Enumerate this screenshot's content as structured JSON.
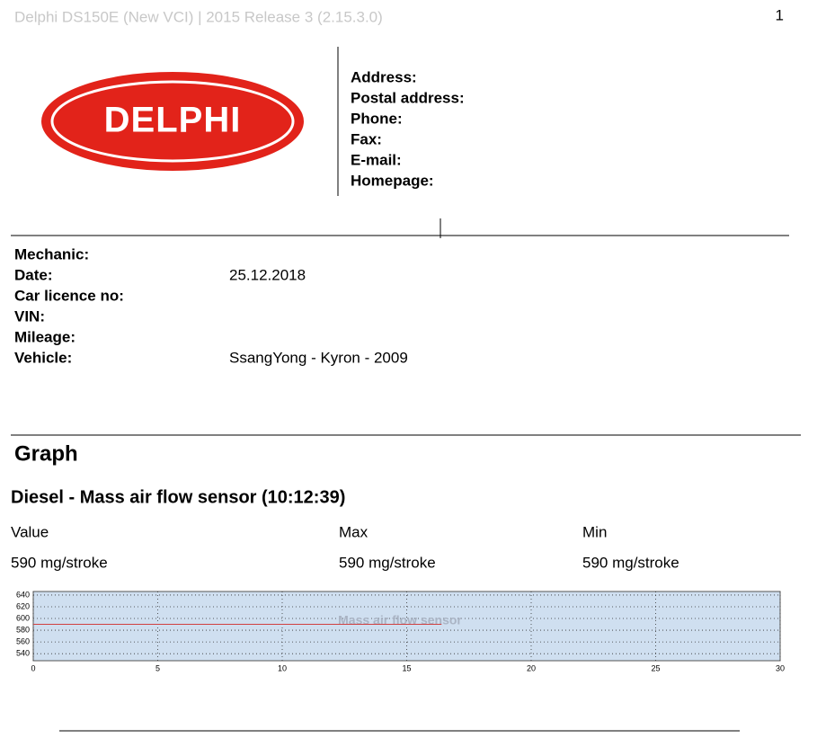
{
  "header": {
    "title": "Delphi DS150E (New VCI) | 2015 Release 3 (2.15.3.0)",
    "page_number": "1"
  },
  "logo": {
    "text": "DELPHI"
  },
  "contact": {
    "labels": [
      "Address:",
      "Postal address:",
      "Phone:",
      "Fax:",
      "E-mail:",
      "Homepage:"
    ]
  },
  "info": {
    "rows": [
      {
        "label": "Mechanic:"
      },
      {
        "label": "Date:",
        "value": "25.12.2018"
      },
      {
        "label": "Car licence no:"
      },
      {
        "label": "VIN:"
      },
      {
        "label": "Mileage:"
      },
      {
        "label": "Vehicle:",
        "value": "SsangYong - Kyron - 2009"
      }
    ]
  },
  "section_title": "Graph",
  "graph": {
    "title": "Diesel - Mass air flow sensor (10:12:39)",
    "stats": {
      "headers": [
        "Value",
        "Max",
        "Min"
      ],
      "values": [
        "590 mg/stroke",
        "590 mg/stroke",
        "590 mg/stroke"
      ]
    }
  },
  "chart_data": {
    "type": "line",
    "title": "Mass air flow sensor",
    "x": [
      0,
      16.4
    ],
    "series": [
      {
        "color": "#d04040",
        "values": [
          590,
          590
        ]
      }
    ],
    "xlim": [
      0,
      30
    ],
    "xticks": [
      0,
      5,
      10,
      15,
      20,
      25,
      30
    ],
    "ylim": [
      528,
      646
    ],
    "yticks": [
      540,
      560,
      580,
      600,
      620,
      640
    ],
    "grid": true
  }
}
